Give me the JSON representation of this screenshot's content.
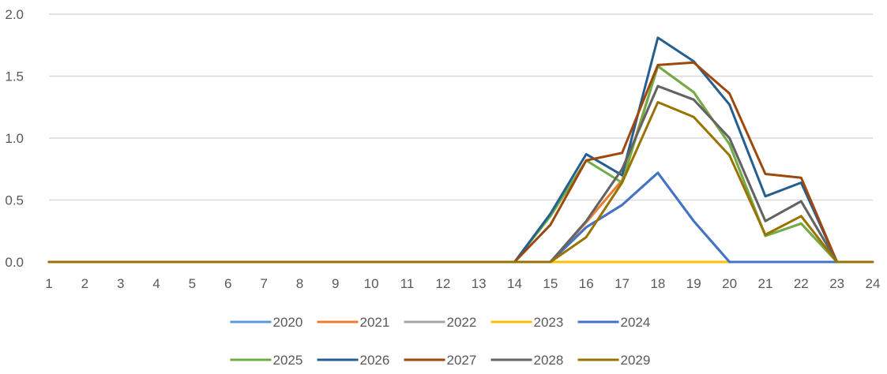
{
  "chart_data": {
    "type": "line",
    "title": "",
    "xlabel": "",
    "ylabel": "",
    "x": [
      1,
      2,
      3,
      4,
      5,
      6,
      7,
      8,
      9,
      10,
      11,
      12,
      13,
      14,
      15,
      16,
      17,
      18,
      19,
      20,
      21,
      22,
      23,
      24
    ],
    "ylim": [
      0,
      2.0
    ],
    "yticks": [
      "0.0",
      "0.5",
      "1.0",
      "1.5",
      "2.0"
    ],
    "grid": true,
    "legend_position": "bottom",
    "series": [
      {
        "name": "2020",
        "color": "#5B9BD5",
        "values": [
          0,
          0,
          0,
          0,
          0,
          0,
          0,
          0,
          0,
          0,
          0,
          0,
          0,
          0,
          0,
          0.28,
          0.46,
          0.72,
          0.33,
          0,
          0,
          0,
          0,
          null
        ]
      },
      {
        "name": "2021",
        "color": "#ED7D31",
        "values": [
          0,
          0,
          0,
          0,
          0,
          0,
          0,
          0,
          0,
          0,
          0,
          0,
          0,
          0,
          0,
          0.32,
          0.66,
          1.58,
          1.37,
          0.95,
          0.21,
          0.31,
          0,
          null
        ]
      },
      {
        "name": "2022",
        "color": "#A5A5A5",
        "values": [
          0,
          0,
          0,
          0,
          0,
          0,
          0,
          0,
          0,
          0,
          0,
          0,
          0,
          0,
          0,
          0.33,
          0.75,
          1.42,
          1.31,
          1.0,
          0.33,
          0.49,
          0,
          null
        ]
      },
      {
        "name": "2023",
        "color": "#FFC000",
        "values": [
          0,
          0,
          0,
          0,
          0,
          0,
          0,
          0,
          0,
          0,
          0,
          0,
          0,
          0,
          0,
          0,
          0,
          0,
          0,
          0,
          0,
          0,
          0,
          null
        ]
      },
      {
        "name": "2024",
        "color": "#4472C4",
        "values": [
          0,
          0,
          0,
          0,
          0,
          0,
          0,
          0,
          0,
          0,
          0,
          0,
          0,
          0,
          0,
          0.28,
          0.46,
          0.72,
          0.33,
          0,
          0,
          0,
          0,
          null
        ]
      },
      {
        "name": "2025",
        "color": "#70AD47",
        "values": [
          0,
          0,
          0,
          0,
          0,
          0,
          0,
          0,
          0,
          0,
          0,
          0,
          0,
          0,
          0.37,
          0.82,
          0.64,
          1.58,
          1.37,
          0.95,
          0.21,
          0.31,
          0,
          null
        ]
      },
      {
        "name": "2026",
        "color": "#255E91",
        "values": [
          0,
          0,
          0,
          0,
          0,
          0,
          0,
          0,
          0,
          0,
          0,
          0,
          0,
          0,
          0.39,
          0.87,
          0.7,
          1.81,
          1.62,
          1.27,
          0.53,
          0.64,
          0,
          null
        ]
      },
      {
        "name": "2027",
        "color": "#9E480E",
        "values": [
          0,
          0,
          0,
          0,
          0,
          0,
          0,
          0,
          0,
          0,
          0,
          0,
          0,
          0,
          0.3,
          0.82,
          0.88,
          1.59,
          1.61,
          1.36,
          0.71,
          0.68,
          0,
          null
        ]
      },
      {
        "name": "2028",
        "color": "#636363",
        "values": [
          0,
          0,
          0,
          0,
          0,
          0,
          0,
          0,
          0,
          0,
          0,
          0,
          0,
          0,
          0,
          0.33,
          0.75,
          1.42,
          1.31,
          1.0,
          0.33,
          0.49,
          0,
          null
        ]
      },
      {
        "name": "2029",
        "color": "#997300",
        "values": [
          0,
          0,
          0,
          0,
          0,
          0,
          0,
          0,
          0,
          0,
          0,
          0,
          0,
          0,
          0,
          0.2,
          0.64,
          1.29,
          1.17,
          0.86,
          0.22,
          0.37,
          0,
          0
        ]
      }
    ]
  }
}
